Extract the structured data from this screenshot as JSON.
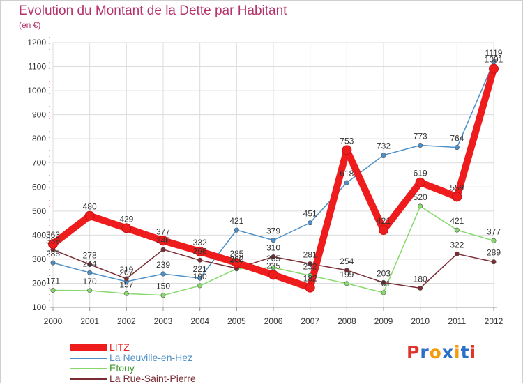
{
  "title": "Evolution du Montant de la Dette par Habitant",
  "unit_label": "(en €)",
  "logo_text": "Proxiti",
  "logo_colors": [
    "#e0342a",
    "#2a6fc9",
    "#f39c12",
    "#2a6fc9",
    "#f39c12",
    "#2a6fc9",
    "#e0342a"
  ],
  "chart_data": {
    "type": "line",
    "title": "Evolution du Montant de la Dette par Habitant",
    "subtitle": "(en €)",
    "x": [
      "2000",
      "2001",
      "2002",
      "2003",
      "2004",
      "2005",
      "2006",
      "2007",
      "2008",
      "2009",
      "2010",
      "2011",
      "2012"
    ],
    "ylim": [
      100,
      1200
    ],
    "yticks": [
      100,
      200,
      300,
      400,
      500,
      600,
      700,
      800,
      900,
      1000,
      1100,
      1200
    ],
    "grid": true,
    "legend_position": "bottom-left",
    "series": [
      {
        "name": "LITZ",
        "color": "#ee1c1c",
        "emphasis": true,
        "values": [
          363,
          480,
          429,
          377,
          332,
          285,
          235,
          182,
          753,
          421,
          619,
          559,
          1091
        ]
      },
      {
        "name": "La Neuville-en-Hez",
        "color": "#4d90c8",
        "emphasis": false,
        "values": [
          285,
          244,
          207,
          239,
          221,
          421,
          379,
          451,
          618,
          732,
          773,
          764,
          1119
        ]
      },
      {
        "name": "Etouy",
        "color": "#87d96c",
        "emphasis": false,
        "values": [
          171,
          170,
          157,
          150,
          190,
          260,
          265,
          232,
          199,
          161,
          520,
          421,
          377
        ]
      },
      {
        "name": "La Rue-Saint-Pierre",
        "color": "#7a2c34",
        "emphasis": false,
        "values": [
          339,
          278,
          219,
          340,
          296,
          262,
          310,
          281,
          254,
          203,
          180,
          322,
          289
        ]
      }
    ]
  }
}
